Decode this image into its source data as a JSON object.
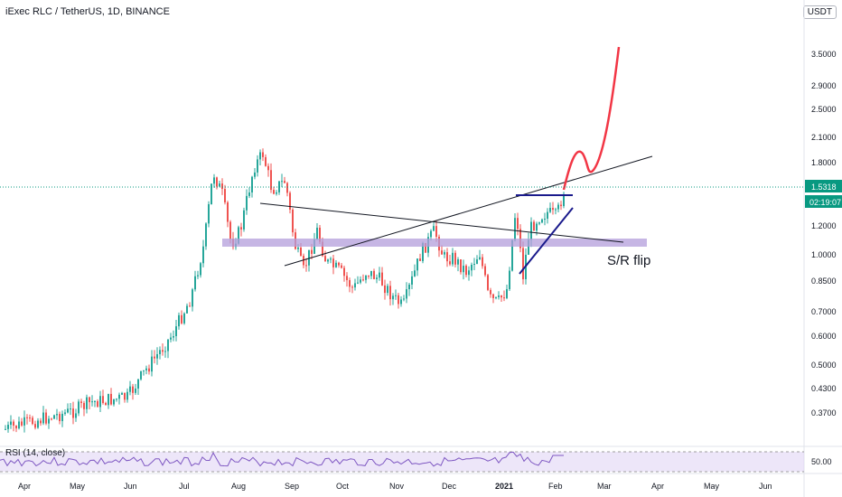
{
  "header": {
    "title": "iExec RLC / TetherUS, 1D, BINANCE",
    "currency": "USDT"
  },
  "price_axis": {
    "labels": [
      "3.5000",
      "2.9000",
      "2.5000",
      "2.1000",
      "1.8000",
      "1.5318",
      "02:19:07",
      "1.2000",
      "1.0000",
      "0.8500",
      "0.7000",
      "0.6000",
      "0.5000",
      "0.4300",
      "0.3700"
    ],
    "current_price": "1.5318",
    "countdown": "02:19:07"
  },
  "time_axis": {
    "labels": [
      "Apr",
      "May",
      "Jun",
      "Jul",
      "Aug",
      "Sep",
      "Oct",
      "Nov",
      "Dec",
      "2021",
      "Feb",
      "Mar",
      "Apr",
      "May",
      "Jun"
    ]
  },
  "annotation": {
    "text": "S/R flip"
  },
  "rsi": {
    "label": "RSI (14, close)",
    "value_label": "50.00"
  },
  "colors": {
    "up": "#26a69a",
    "down": "#ef5350",
    "projection": "#f23645",
    "zone": "#b39ddb",
    "rsi_line": "#7e57c2",
    "rsi_band": "#e1d5f5",
    "price_tag": "#089981"
  }
}
